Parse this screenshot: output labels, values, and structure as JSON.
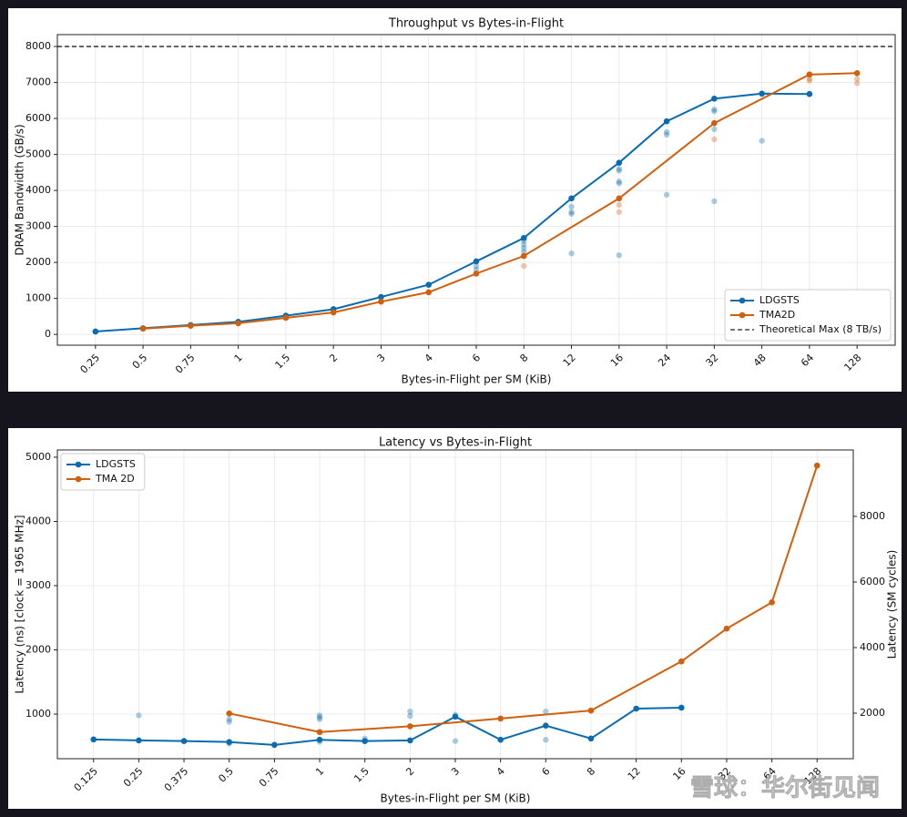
{
  "chart_data": [
    {
      "type": "line",
      "title": "Throughput vs Bytes-in-Flight",
      "xlabel": "Bytes-in-Flight per SM (KiB)",
      "ylabel": "DRAM Bandwidth (GB/s)",
      "categories": [
        "0.25",
        "0.5",
        "0.75",
        "1",
        "1.5",
        "2",
        "3",
        "4",
        "6",
        "8",
        "12",
        "16",
        "24",
        "32",
        "48",
        "64",
        "128"
      ],
      "ylim": [
        -300,
        8330
      ],
      "yticks": [
        0,
        1000,
        2000,
        3000,
        4000,
        5000,
        6000,
        7000,
        8000
      ],
      "grid": true,
      "legend": "lower right",
      "series": [
        {
          "name": "LDGSTS",
          "color": "#0a6cae",
          "x": [
            "0.25",
            "0.5",
            "0.75",
            "1",
            "1.5",
            "2",
            "3",
            "4",
            "6",
            "8",
            "12",
            "16",
            "24",
            "32",
            "48",
            "64"
          ],
          "values": [
            80,
            170,
            260,
            350,
            520,
            700,
            1040,
            1380,
            2030,
            2680,
            3780,
            4770,
            5920,
            6550,
            6690,
            6680
          ],
          "trials_x": [
            "6",
            "6",
            "8",
            "8",
            "8",
            "8",
            "12",
            "12",
            "12",
            "12",
            "16",
            "16",
            "16",
            "16",
            "16",
            "24",
            "24",
            "24",
            "32",
            "32",
            "32",
            "32",
            "48"
          ],
          "trials_values": [
            1800,
            1900,
            2300,
            2400,
            2500,
            2600,
            2250,
            3350,
            3400,
            3550,
            2200,
            4200,
            4250,
            4550,
            4600,
            3880,
            5550,
            5620,
            3700,
            5700,
            6200,
            6250,
            5380
          ]
        },
        {
          "name": "TMA2D",
          "color": "#d0600e",
          "x": [
            "0.5",
            "0.75",
            "1",
            "1.5",
            "2",
            "3",
            "4",
            "6",
            "8",
            "16",
            "32",
            "64",
            "128"
          ],
          "values": [
            160,
            240,
            310,
            460,
            610,
            910,
            1170,
            1690,
            2180,
            3780,
            5870,
            7220,
            7260
          ],
          "trials_x": [
            "8",
            "16",
            "16",
            "32",
            "64",
            "64",
            "128",
            "128"
          ],
          "trials_values": [
            1900,
            3400,
            3600,
            5420,
            7050,
            7100,
            6980,
            7100
          ]
        }
      ],
      "hlines": [
        {
          "name": "Theoretical Max (8 TB/s)",
          "value": 8000,
          "color": "#222222",
          "style": "dashed"
        }
      ]
    },
    {
      "type": "line",
      "title": "Latency vs Bytes-in-Flight",
      "xlabel": "Bytes-in-Flight per SM (KiB)",
      "ylabel": "Latency (ns)  [clock = 1965 MHz]",
      "y2label": "Latency (SM cycles)",
      "categories": [
        "0.125",
        "0.25",
        "0.375",
        "0.5",
        "0.75",
        "1",
        "1.5",
        "2",
        "3",
        "4",
        "6",
        "8",
        "12",
        "16",
        "32",
        "64",
        "128"
      ],
      "ylim": [
        305,
        5113
      ],
      "yticks": [
        1000,
        2000,
        3000,
        4000,
        5000
      ],
      "y2lim": [
        611,
        10028
      ],
      "y2ticks": [
        2000,
        4000,
        6000,
        8000
      ],
      "grid": true,
      "legend": "upper left",
      "series": [
        {
          "name": "LDGSTS",
          "color": "#0a6cae",
          "x": [
            "0.125",
            "0.25",
            "0.375",
            "0.5",
            "0.75",
            "1",
            "1.5",
            "2",
            "3",
            "4",
            "6",
            "8",
            "12",
            "16"
          ],
          "values": [
            605,
            590,
            580,
            565,
            520,
            600,
            580,
            590,
            960,
            600,
            820,
            620,
            1085,
            1100
          ],
          "trials_x": [
            "0.25",
            "0.5",
            "0.5",
            "0.5",
            "1",
            "1",
            "1",
            "1",
            "1.5",
            "2",
            "2",
            "3",
            "3",
            "6",
            "6"
          ],
          "trials_values": [
            980,
            880,
            920,
            540,
            980,
            950,
            920,
            570,
            620,
            1040,
            970,
            990,
            580,
            1040,
            600
          ]
        },
        {
          "name": "TMA 2D",
          "color": "#d0600e",
          "x": [
            "0.5",
            "1",
            "2",
            "4",
            "8",
            "16",
            "32",
            "64",
            "128"
          ],
          "values": [
            1010,
            720,
            810,
            930,
            1055,
            1820,
            2330,
            2740,
            4870
          ]
        }
      ],
      "watermark": "雪球：华尔街见闻"
    }
  ]
}
